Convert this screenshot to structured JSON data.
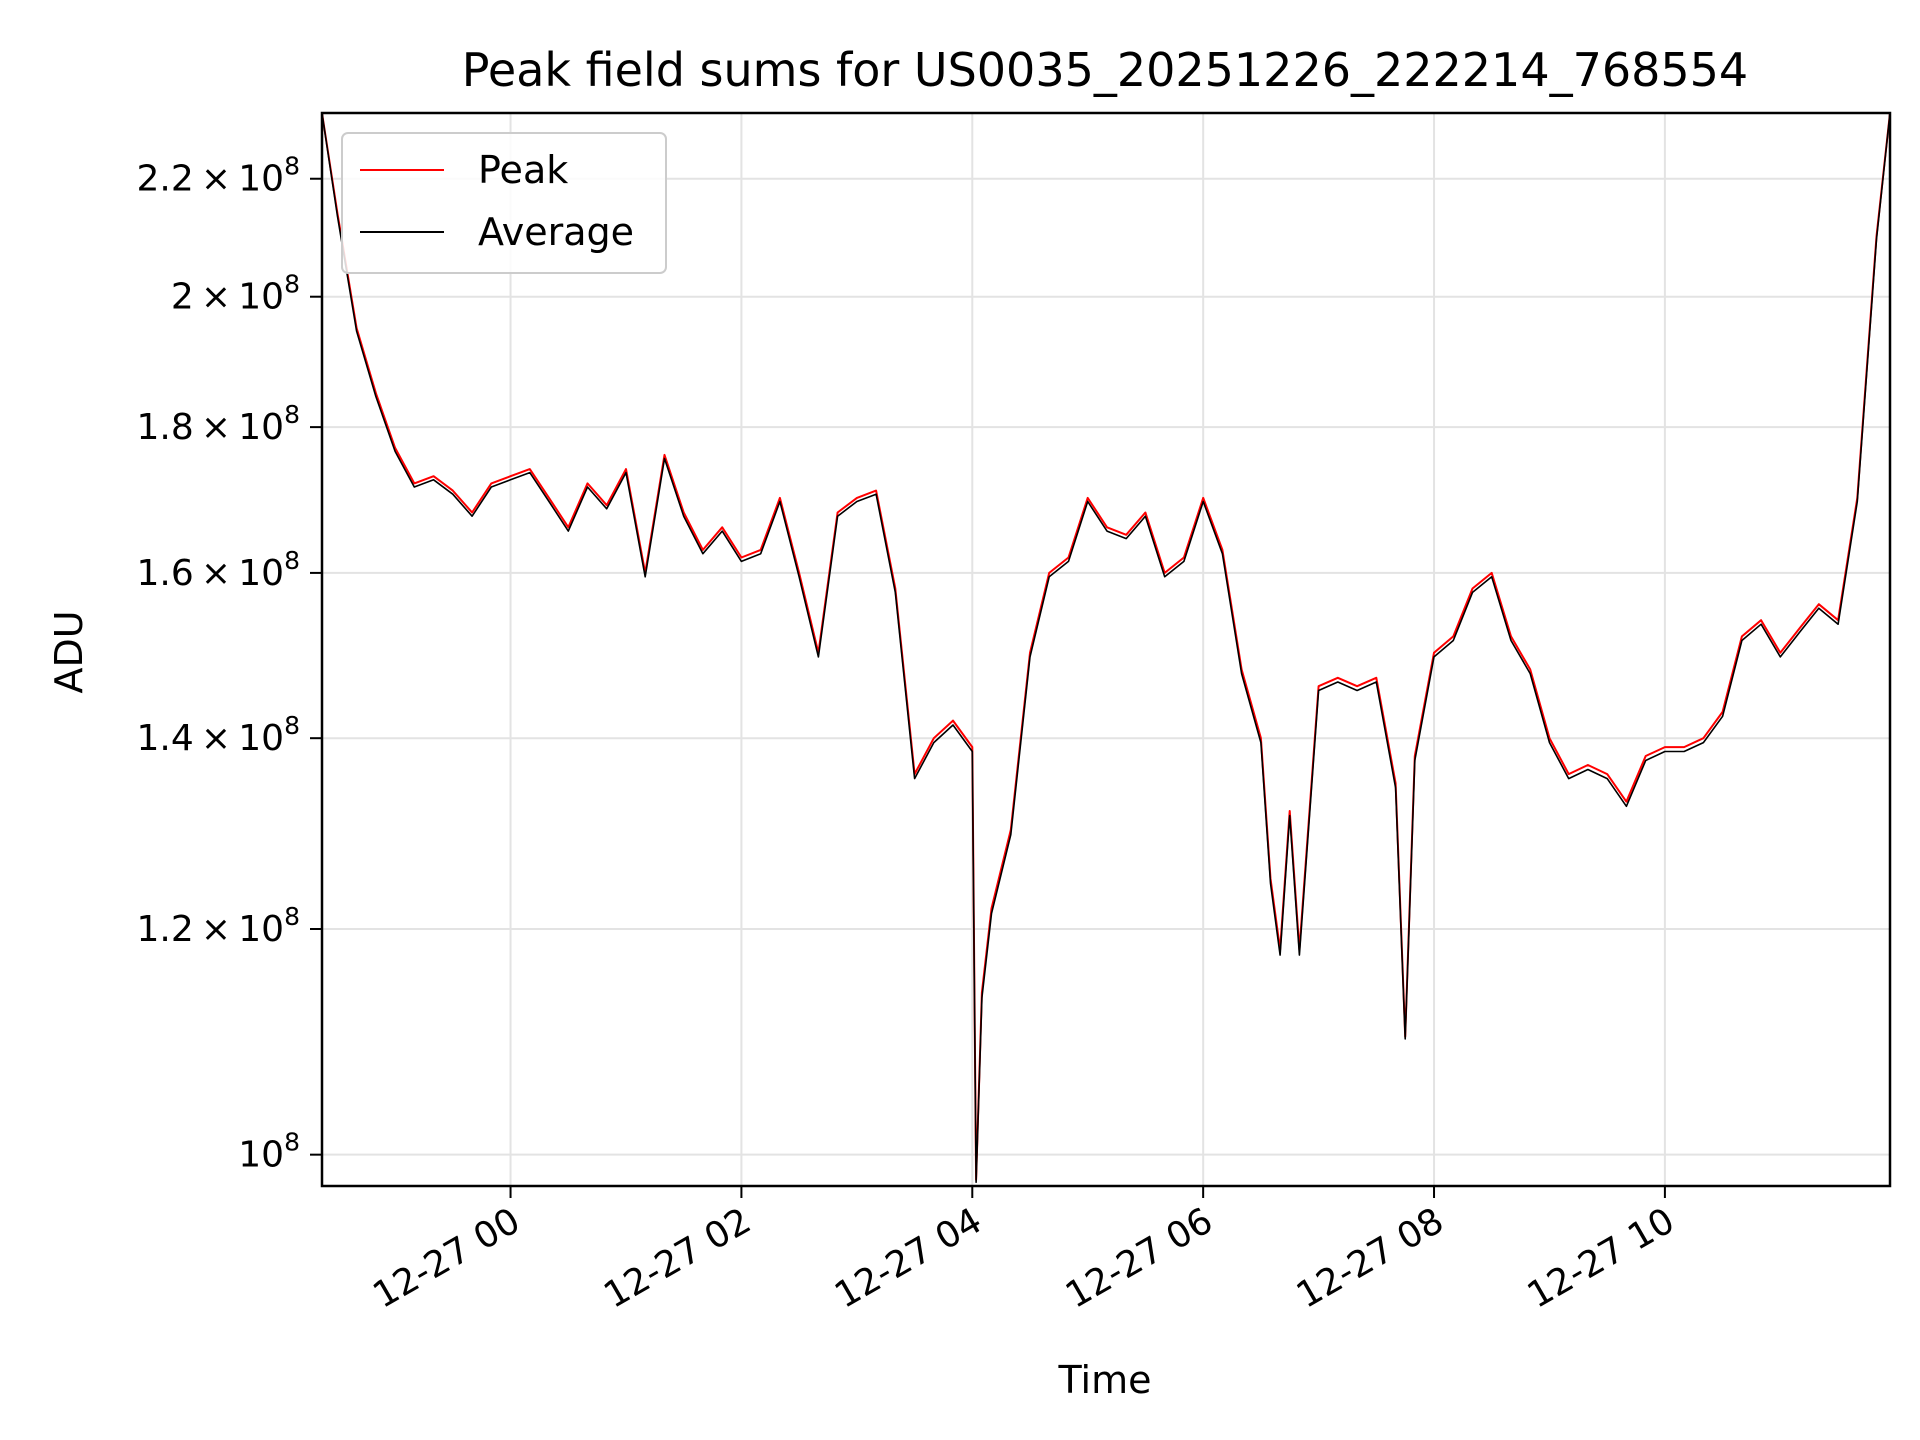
{
  "chart_data": {
    "type": "line",
    "title": "Peak field sums for US0035_20251226_222214_768554",
    "xlabel": "Time",
    "ylabel": "ADU",
    "x_axis": {
      "kind": "datetime",
      "range": [
        "2025-12-26 22:22",
        "2025-12-27 11:57"
      ],
      "ticks": [
        {
          "value": "2025-12-27 00:00",
          "label": "12-27 00"
        },
        {
          "value": "2025-12-27 02:00",
          "label": "12-27 02"
        },
        {
          "value": "2025-12-27 04:00",
          "label": "12-27 04"
        },
        {
          "value": "2025-12-27 06:00",
          "label": "12-27 06"
        },
        {
          "value": "2025-12-27 08:00",
          "label": "12-27 08"
        },
        {
          "value": "2025-12-27 10:00",
          "label": "12-27 10"
        }
      ]
    },
    "y_axis": {
      "scale": "log",
      "range": [
        97500000,
        232000000
      ],
      "ticks": [
        {
          "value": 100000000,
          "mantissa": "",
          "exponent": "8"
        },
        {
          "value": 120000000,
          "mantissa": "1.2",
          "exponent": "8"
        },
        {
          "value": 140000000,
          "mantissa": "1.4",
          "exponent": "8"
        },
        {
          "value": 160000000,
          "mantissa": "1.6",
          "exponent": "8"
        },
        {
          "value": 180000000,
          "mantissa": "1.8",
          "exponent": "8"
        },
        {
          "value": 200000000,
          "mantissa": "2",
          "exponent": "8"
        },
        {
          "value": 220000000,
          "mantissa": "2.2",
          "exponent": "8"
        }
      ]
    },
    "grid": true,
    "legend": {
      "position": "top-left"
    },
    "x": [
      "2025-12-26 22:22",
      "2025-12-26 22:30",
      "2025-12-26 22:40",
      "2025-12-26 22:50",
      "2025-12-26 23:00",
      "2025-12-26 23:10",
      "2025-12-26 23:20",
      "2025-12-26 23:30",
      "2025-12-26 23:40",
      "2025-12-26 23:50",
      "2025-12-27 00:00",
      "2025-12-27 00:10",
      "2025-12-27 00:20",
      "2025-12-27 00:30",
      "2025-12-27 00:40",
      "2025-12-27 00:50",
      "2025-12-27 01:00",
      "2025-12-27 01:10",
      "2025-12-27 01:20",
      "2025-12-27 01:30",
      "2025-12-27 01:40",
      "2025-12-27 01:50",
      "2025-12-27 02:00",
      "2025-12-27 02:10",
      "2025-12-27 02:20",
      "2025-12-27 02:30",
      "2025-12-27 02:40",
      "2025-12-27 02:50",
      "2025-12-27 03:00",
      "2025-12-27 03:10",
      "2025-12-27 03:20",
      "2025-12-27 03:30",
      "2025-12-27 03:40",
      "2025-12-27 03:50",
      "2025-12-27 04:00",
      "2025-12-27 04:02",
      "2025-12-27 04:05",
      "2025-12-27 04:10",
      "2025-12-27 04:20",
      "2025-12-27 04:30",
      "2025-12-27 04:40",
      "2025-12-27 04:50",
      "2025-12-27 05:00",
      "2025-12-27 05:10",
      "2025-12-27 05:20",
      "2025-12-27 05:30",
      "2025-12-27 05:40",
      "2025-12-27 05:50",
      "2025-12-27 06:00",
      "2025-12-27 06:10",
      "2025-12-27 06:20",
      "2025-12-27 06:30",
      "2025-12-27 06:35",
      "2025-12-27 06:40",
      "2025-12-27 06:45",
      "2025-12-27 06:50",
      "2025-12-27 07:00",
      "2025-12-27 07:10",
      "2025-12-27 07:20",
      "2025-12-27 07:30",
      "2025-12-27 07:40",
      "2025-12-27 07:45",
      "2025-12-27 07:50",
      "2025-12-27 08:00",
      "2025-12-27 08:10",
      "2025-12-27 08:20",
      "2025-12-27 08:30",
      "2025-12-27 08:40",
      "2025-12-27 08:50",
      "2025-12-27 09:00",
      "2025-12-27 09:10",
      "2025-12-27 09:20",
      "2025-12-27 09:30",
      "2025-12-27 09:40",
      "2025-12-27 09:50",
      "2025-12-27 10:00",
      "2025-12-27 10:10",
      "2025-12-27 10:20",
      "2025-12-27 10:30",
      "2025-12-27 10:40",
      "2025-12-27 10:50",
      "2025-12-27 11:00",
      "2025-12-27 11:10",
      "2025-12-27 11:20",
      "2025-12-27 11:30",
      "2025-12-27 11:40",
      "2025-12-27 11:50",
      "2025-12-27 11:57"
    ],
    "series": [
      {
        "name": "Peak",
        "color": "#ff0000",
        "values": [
          232000000,
          214000000,
          195000000,
          185000000,
          177000000,
          172000000,
          173000000,
          171000000,
          168000000,
          172000000,
          173000000,
          174000000,
          170000000,
          166000000,
          172000000,
          169000000,
          174000000,
          160000000,
          176000000,
          168000000,
          163000000,
          166000000,
          162000000,
          163000000,
          170000000,
          160000000,
          150000000,
          168000000,
          170000000,
          171000000,
          158000000,
          136000000,
          140000000,
          142000000,
          139000000,
          98000000,
          114000000,
          122000000,
          130000000,
          150000000,
          160000000,
          162000000,
          170000000,
          166000000,
          165000000,
          168000000,
          160000000,
          162000000,
          170000000,
          163000000,
          148000000,
          140000000,
          125000000,
          118000000,
          132000000,
          118000000,
          146000000,
          147000000,
          146000000,
          147000000,
          135000000,
          110000000,
          138000000,
          150000000,
          152000000,
          158000000,
          160000000,
          152000000,
          148000000,
          140000000,
          136000000,
          137000000,
          136000000,
          133000000,
          138000000,
          139000000,
          139000000,
          140000000,
          143000000,
          152000000,
          154000000,
          150000000,
          153000000,
          156000000,
          154000000,
          170000000,
          210000000,
          232000000
        ]
      },
      {
        "name": "Average",
        "color": "#000000",
        "values": [
          232000000,
          213500000,
          194500000,
          184500000,
          176500000,
          171500000,
          172500000,
          170500000,
          167500000,
          171500000,
          172500000,
          173500000,
          169500000,
          165500000,
          171500000,
          168500000,
          173500000,
          159500000,
          175500000,
          167500000,
          162500000,
          165500000,
          161500000,
          162500000,
          169500000,
          159500000,
          149500000,
          167500000,
          169500000,
          170500000,
          157500000,
          135500000,
          139500000,
          141500000,
          138500000,
          97800000,
          113500000,
          121500000,
          129500000,
          149500000,
          159500000,
          161500000,
          169500000,
          165500000,
          164500000,
          167500000,
          159500000,
          161500000,
          169500000,
          162500000,
          147500000,
          139500000,
          124500000,
          117500000,
          131500000,
          117500000,
          145500000,
          146500000,
          145500000,
          146500000,
          134500000,
          109800000,
          137500000,
          149500000,
          151500000,
          157500000,
          159500000,
          151500000,
          147500000,
          139500000,
          135500000,
          136500000,
          135500000,
          132500000,
          137500000,
          138500000,
          138500000,
          139500000,
          142500000,
          151500000,
          153500000,
          149500000,
          152500000,
          155500000,
          153500000,
          169500000,
          209500000,
          232000000
        ]
      }
    ]
  }
}
